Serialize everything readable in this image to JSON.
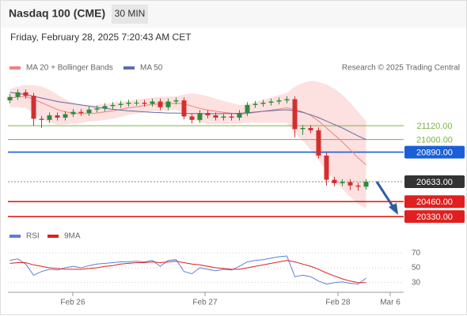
{
  "header": {
    "title": "Nasdaq 100 (CME)",
    "timeframe": "30 MIN",
    "datetime": "Friday, February 28, 2025 7:20:43 AM CET",
    "credit": "Research © 2025 Trading Central"
  },
  "chart_data": [
    {
      "type": "candlestick",
      "x": [
        0.5,
        2.5,
        4.5,
        6.5,
        8.5,
        10.5,
        12.5,
        14.5,
        16.5,
        18.5,
        20.5,
        22.5,
        24.5,
        26.5,
        28.5,
        30.5,
        32.5,
        34.5,
        36.5,
        38.5,
        40.5,
        42.5,
        44.5,
        46.5,
        48.5,
        50.5,
        52.5,
        54.5,
        56.5,
        58.5,
        60.5,
        62.5,
        64.5,
        66.5,
        68.5,
        70.5,
        72.5,
        74.5,
        76.5,
        78.5,
        80.5,
        82.5,
        84.5,
        86.5,
        88.5,
        90.5
      ],
      "open": [
        21340,
        21370,
        21410,
        21380,
        21180,
        21170,
        21210,
        21190,
        21220,
        21240,
        21230,
        21260,
        21270,
        21290,
        21300,
        21310,
        21320,
        21320,
        21310,
        21330,
        21280,
        21330,
        21340,
        21200,
        21170,
        21230,
        21210,
        21190,
        21200,
        21190,
        21230,
        21300,
        21310,
        21320,
        21330,
        21340,
        21350,
        21090,
        21100,
        21080,
        20860,
        20650,
        20620,
        20630,
        20600,
        20590
      ],
      "high": [
        21395,
        21435,
        21435,
        21405,
        21205,
        21235,
        21235,
        21245,
        21265,
        21265,
        21285,
        21295,
        21315,
        21325,
        21335,
        21345,
        21345,
        21345,
        21355,
        21355,
        21355,
        21365,
        21365,
        21225,
        21255,
        21255,
        21235,
        21225,
        21225,
        21255,
        21325,
        21335,
        21345,
        21355,
        21365,
        21375,
        21375,
        21125,
        21125,
        21105,
        20885,
        20675,
        20655,
        20655,
        20625,
        20655
      ],
      "low": [
        21315,
        21345,
        21355,
        21120,
        21100,
        21145,
        21165,
        21165,
        21195,
        21205,
        21205,
        21235,
        21245,
        21265,
        21275,
        21285,
        21295,
        21285,
        21285,
        21255,
        21255,
        21305,
        21175,
        21140,
        21145,
        21185,
        21165,
        21165,
        21165,
        21165,
        21205,
        21275,
        21285,
        21295,
        21305,
        21315,
        21020,
        21040,
        21055,
        20835,
        20600,
        20595,
        20595,
        20560,
        20555,
        20565
      ],
      "close": [
        21370,
        21410,
        21380,
        21180,
        21170,
        21210,
        21190,
        21220,
        21240,
        21230,
        21260,
        21270,
        21290,
        21300,
        21310,
        21320,
        21320,
        21310,
        21330,
        21280,
        21330,
        21340,
        21200,
        21170,
        21230,
        21210,
        21190,
        21200,
        21190,
        21230,
        21300,
        21310,
        21320,
        21330,
        21340,
        21350,
        21090,
        21100,
        21080,
        20860,
        20650,
        20620,
        20630,
        20600,
        20590,
        20633
      ],
      "up_color": "#2e8b3a",
      "down_color": "#d32f2f",
      "series": [
        {
          "name": "MA 20 + Bollinger Bands",
          "color": "#f08080",
          "band_color": "#fde0e0",
          "values": [
            21360,
            21370,
            21375,
            21350,
            21320,
            21290,
            21260,
            21240,
            21230,
            21225,
            21225,
            21230,
            21240,
            21250,
            21262,
            21275,
            21285,
            21295,
            21305,
            21310,
            21312,
            21315,
            21310,
            21290,
            21270,
            21255,
            21245,
            21235,
            21228,
            21220,
            21225,
            21235,
            21245,
            21255,
            21265,
            21275,
            21260,
            21240,
            21210,
            21160,
            21100,
            21040,
            20980,
            20910,
            20840,
            20780
          ],
          "band_upper": [
            21440,
            21460,
            21475,
            21470,
            21460,
            21430,
            21390,
            21350,
            21320,
            21305,
            21295,
            21300,
            21310,
            21320,
            21327,
            21335,
            21345,
            21355,
            21365,
            21370,
            21372,
            21375,
            21390,
            21400,
            21390,
            21375,
            21355,
            21335,
            21318,
            21300,
            21305,
            21325,
            21345,
            21365,
            21385,
            21405,
            21460,
            21490,
            21510,
            21500,
            21480,
            21440,
            21390,
            21320,
            21240,
            21160
          ],
          "band_lower": [
            21280,
            21280,
            21275,
            21230,
            21180,
            21150,
            21130,
            21130,
            21140,
            21145,
            21155,
            21160,
            21170,
            21180,
            21197,
            21215,
            21225,
            21235,
            21245,
            21250,
            21252,
            21255,
            21230,
            21180,
            21150,
            21135,
            21135,
            21135,
            21138,
            21140,
            21145,
            21145,
            21145,
            21145,
            21145,
            21145,
            21060,
            20990,
            20910,
            20820,
            20720,
            20640,
            20570,
            20500,
            20440,
            20400
          ]
        },
        {
          "name": "MA 50",
          "color": "#5b6fa8",
          "values": [
            21410,
            21400,
            21390,
            21375,
            21360,
            21345,
            21330,
            21320,
            21310,
            21300,
            21290,
            21280,
            21270,
            21262,
            21255,
            21250,
            21245,
            21240,
            21236,
            21233,
            21230,
            21230,
            21228,
            21226,
            21225,
            21224,
            21224,
            21225,
            21226,
            21228,
            21232,
            21238,
            21245,
            21250,
            21255,
            21258,
            21250,
            21235,
            21215,
            21190,
            21160,
            21130,
            21100,
            21065,
            21030,
            21000
          ]
        }
      ],
      "levels": [
        {
          "value": 21120,
          "label": "21120.00",
          "color": "#7cb342",
          "boxed": false,
          "dotted": false
        },
        {
          "value": 21000,
          "label": "21000.00",
          "color": "#7cb342",
          "boxed": false,
          "dotted": false
        },
        {
          "value": 20890,
          "label": "20890.00",
          "color": "#1a5fd6",
          "boxed": true,
          "dotted": false
        },
        {
          "value": 20633,
          "label": "20633.00",
          "color": "#333333",
          "boxed": true,
          "dotted": true
        },
        {
          "value": 20460,
          "label": "20460.00",
          "color": "#e02020",
          "boxed": true,
          "dotted": false
        },
        {
          "value": 20330,
          "label": "20330.00",
          "color": "#e02020",
          "boxed": true,
          "dotted": false
        }
      ],
      "xlim": [
        0,
        100
      ],
      "ylim": [
        20290,
        21560
      ]
    },
    {
      "type": "line",
      "x": [
        0.5,
        2.5,
        4.5,
        6.5,
        8.5,
        10.5,
        12.5,
        14.5,
        16.5,
        18.5,
        20.5,
        22.5,
        24.5,
        26.5,
        28.5,
        30.5,
        32.5,
        34.5,
        36.5,
        38.5,
        40.5,
        42.5,
        44.5,
        46.5,
        48.5,
        50.5,
        52.5,
        54.5,
        56.5,
        58.5,
        60.5,
        62.5,
        64.5,
        66.5,
        68.5,
        70.5,
        72.5,
        74.5,
        76.5,
        78.5,
        80.5,
        82.5,
        84.5,
        86.5,
        88.5,
        90.5
      ],
      "series": [
        {
          "name": "RSI",
          "color": "#5b7fd6",
          "values": [
            60,
            62,
            55,
            40,
            45,
            48,
            47,
            50,
            52,
            50,
            53,
            55,
            56,
            57,
            58,
            58,
            59,
            58,
            60,
            52,
            60,
            61,
            45,
            42,
            50,
            48,
            46,
            48,
            47,
            52,
            58,
            60,
            61,
            63,
            65,
            66,
            38,
            40,
            38,
            32,
            28,
            30,
            31,
            29,
            28,
            36
          ]
        },
        {
          "name": "9MA",
          "color": "#e02020",
          "values": [
            56,
            57,
            57,
            54,
            52,
            50,
            49,
            48,
            48,
            48,
            49,
            50,
            52,
            53,
            55,
            56,
            57,
            57,
            58,
            57,
            58,
            59,
            57,
            55,
            54,
            52,
            50,
            49,
            48,
            48,
            50,
            52,
            54,
            56,
            58,
            60,
            58,
            55,
            52,
            48,
            43,
            39,
            35,
            32,
            30,
            30
          ]
        }
      ],
      "xlim": [
        0,
        100
      ],
      "ylim": [
        19,
        81
      ],
      "yticks": [
        70,
        50,
        30
      ],
      "grid": true,
      "xticks": [
        {
          "value": 16.4,
          "label": "Feb 26"
        },
        {
          "value": 49.8,
          "label": "Feb 27"
        },
        {
          "value": 83.4,
          "label": "Feb 28"
        },
        {
          "value": 96.6,
          "label": "Mar 6"
        }
      ]
    }
  ]
}
